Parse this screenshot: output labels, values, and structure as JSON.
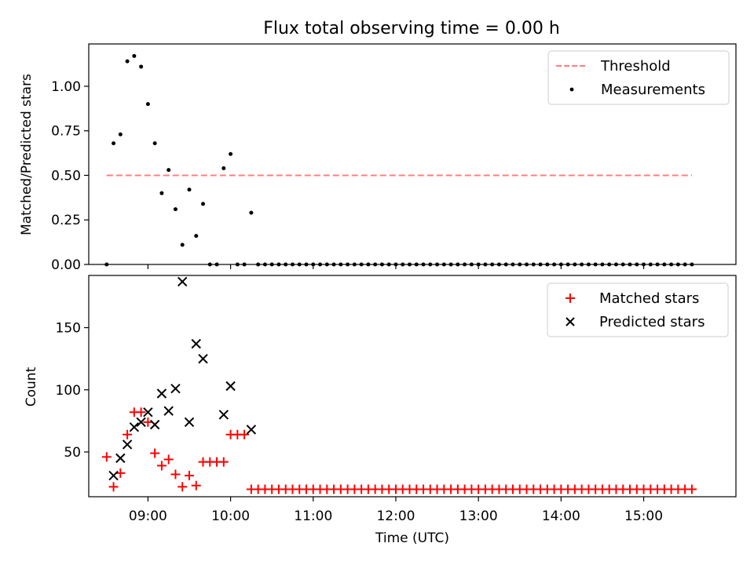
{
  "title": "Flux total observing time = 0.00 h",
  "colors": {
    "threshold": "#ff7f7f",
    "measurements": "#000000",
    "matched": "#ff0000",
    "predicted": "#000000"
  },
  "chart_data": [
    {
      "type": "scatter",
      "ylabel": "Matched/Predicted stars",
      "xlabel": "",
      "ylim": [
        0.0,
        1.2375
      ],
      "yticks": [
        "0.00",
        "0.25",
        "0.50",
        "0.75",
        "1.00"
      ],
      "xlim": [
        "08:17",
        "16:07"
      ],
      "legend_position": "top-right",
      "legend": [
        "Threshold",
        "Measurements"
      ],
      "threshold": {
        "name": "Threshold",
        "y": 0.5,
        "x_start": "08:30",
        "x_end": "15:35"
      },
      "series": [
        {
          "name": "Measurements",
          "points": [
            [
              "08:30",
              0.0
            ],
            [
              "08:35",
              0.68
            ],
            [
              "08:40",
              0.73
            ],
            [
              "08:45",
              1.14
            ],
            [
              "08:50",
              1.17
            ],
            [
              "08:55",
              1.11
            ],
            [
              "09:00",
              0.9
            ],
            [
              "09:05",
              0.68
            ],
            [
              "09:10",
              0.4
            ],
            [
              "09:15",
              0.53
            ],
            [
              "09:20",
              0.31
            ],
            [
              "09:25",
              0.11
            ],
            [
              "09:30",
              0.42
            ],
            [
              "09:35",
              0.16
            ],
            [
              "09:40",
              0.34
            ],
            [
              "09:45",
              0.0
            ],
            [
              "09:50",
              0.0
            ],
            [
              "09:55",
              0.54
            ],
            [
              "10:00",
              0.62
            ],
            [
              "10:05",
              0.0
            ],
            [
              "10:10",
              0.0
            ],
            [
              "10:15",
              0.29
            ],
            [
              "10:20",
              0.0
            ],
            [
              "10:25",
              0.0
            ],
            [
              "10:30",
              0.0
            ],
            [
              "10:35",
              0.0
            ],
            [
              "10:40",
              0.0
            ],
            [
              "10:45",
              0.0
            ],
            [
              "10:50",
              0.0
            ],
            [
              "10:55",
              0.0
            ],
            [
              "11:00",
              0.0
            ],
            [
              "11:05",
              0.0
            ],
            [
              "11:10",
              0.0
            ],
            [
              "11:15",
              0.0
            ],
            [
              "11:20",
              0.0
            ],
            [
              "11:25",
              0.0
            ],
            [
              "11:30",
              0.0
            ],
            [
              "11:35",
              0.0
            ],
            [
              "11:40",
              0.0
            ],
            [
              "11:45",
              0.0
            ],
            [
              "11:50",
              0.0
            ],
            [
              "11:55",
              0.0
            ],
            [
              "12:00",
              0.0
            ],
            [
              "12:05",
              0.0
            ],
            [
              "12:10",
              0.0
            ],
            [
              "12:15",
              0.0
            ],
            [
              "12:20",
              0.0
            ],
            [
              "12:25",
              0.0
            ],
            [
              "12:30",
              0.0
            ],
            [
              "12:35",
              0.0
            ],
            [
              "12:40",
              0.0
            ],
            [
              "12:45",
              0.0
            ],
            [
              "12:50",
              0.0
            ],
            [
              "12:55",
              0.0
            ],
            [
              "13:00",
              0.0
            ],
            [
              "13:05",
              0.0
            ],
            [
              "13:10",
              0.0
            ],
            [
              "13:15",
              0.0
            ],
            [
              "13:20",
              0.0
            ],
            [
              "13:25",
              0.0
            ],
            [
              "13:30",
              0.0
            ],
            [
              "13:35",
              0.0
            ],
            [
              "13:40",
              0.0
            ],
            [
              "13:45",
              0.0
            ],
            [
              "13:50",
              0.0
            ],
            [
              "13:55",
              0.0
            ],
            [
              "14:00",
              0.0
            ],
            [
              "14:05",
              0.0
            ],
            [
              "14:10",
              0.0
            ],
            [
              "14:15",
              0.0
            ],
            [
              "14:20",
              0.0
            ],
            [
              "14:25",
              0.0
            ],
            [
              "14:30",
              0.0
            ],
            [
              "14:35",
              0.0
            ],
            [
              "14:40",
              0.0
            ],
            [
              "14:45",
              0.0
            ],
            [
              "14:50",
              0.0
            ],
            [
              "14:55",
              0.0
            ],
            [
              "15:00",
              0.0
            ],
            [
              "15:05",
              0.0
            ],
            [
              "15:10",
              0.0
            ],
            [
              "15:15",
              0.0
            ],
            [
              "15:20",
              0.0
            ],
            [
              "15:25",
              0.0
            ],
            [
              "15:30",
              0.0
            ],
            [
              "15:35",
              0.0
            ]
          ]
        }
      ]
    },
    {
      "type": "scatter",
      "ylabel": "Count",
      "xlabel": "Time (UTC)",
      "ylim": [
        14,
        192
      ],
      "yticks": [
        "50",
        "100",
        "150"
      ],
      "xlim": [
        "08:17",
        "16:07"
      ],
      "xticks": [
        "09:00",
        "10:00",
        "11:00",
        "12:00",
        "13:00",
        "14:00",
        "15:00"
      ],
      "legend_position": "top-right",
      "legend": [
        "Matched stars",
        "Predicted stars"
      ],
      "series": [
        {
          "name": "Matched stars",
          "marker": "+",
          "points": [
            [
              "08:30",
              46
            ],
            [
              "08:35",
              22
            ],
            [
              "08:40",
              33
            ],
            [
              "08:45",
              64
            ],
            [
              "08:50",
              82
            ],
            [
              "08:55",
              82
            ],
            [
              "09:00",
              74
            ],
            [
              "09:05",
              49
            ],
            [
              "09:10",
              39
            ],
            [
              "09:15",
              44
            ],
            [
              "09:20",
              32
            ],
            [
              "09:25",
              22
            ],
            [
              "09:30",
              31
            ],
            [
              "09:35",
              23
            ],
            [
              "09:40",
              42
            ],
            [
              "09:45",
              42
            ],
            [
              "09:50",
              42
            ],
            [
              "09:55",
              42
            ],
            [
              "10:00",
              64
            ],
            [
              "10:05",
              64
            ],
            [
              "10:10",
              64
            ],
            [
              "10:15",
              20
            ],
            [
              "10:20",
              20
            ],
            [
              "10:25",
              20
            ],
            [
              "10:30",
              20
            ],
            [
              "10:35",
              20
            ],
            [
              "10:40",
              20
            ],
            [
              "10:45",
              20
            ],
            [
              "10:50",
              20
            ],
            [
              "10:55",
              20
            ],
            [
              "11:00",
              20
            ],
            [
              "11:05",
              20
            ],
            [
              "11:10",
              20
            ],
            [
              "11:15",
              20
            ],
            [
              "11:20",
              20
            ],
            [
              "11:25",
              20
            ],
            [
              "11:30",
              20
            ],
            [
              "11:35",
              20
            ],
            [
              "11:40",
              20
            ],
            [
              "11:45",
              20
            ],
            [
              "11:50",
              20
            ],
            [
              "11:55",
              20
            ],
            [
              "12:00",
              20
            ],
            [
              "12:05",
              20
            ],
            [
              "12:10",
              20
            ],
            [
              "12:15",
              20
            ],
            [
              "12:20",
              20
            ],
            [
              "12:25",
              20
            ],
            [
              "12:30",
              20
            ],
            [
              "12:35",
              20
            ],
            [
              "12:40",
              20
            ],
            [
              "12:45",
              20
            ],
            [
              "12:50",
              20
            ],
            [
              "12:55",
              20
            ],
            [
              "13:00",
              20
            ],
            [
              "13:05",
              20
            ],
            [
              "13:10",
              20
            ],
            [
              "13:15",
              20
            ],
            [
              "13:20",
              20
            ],
            [
              "13:25",
              20
            ],
            [
              "13:30",
              20
            ],
            [
              "13:35",
              20
            ],
            [
              "13:40",
              20
            ],
            [
              "13:45",
              20
            ],
            [
              "13:50",
              20
            ],
            [
              "13:55",
              20
            ],
            [
              "14:00",
              20
            ],
            [
              "14:05",
              20
            ],
            [
              "14:10",
              20
            ],
            [
              "14:15",
              20
            ],
            [
              "14:20",
              20
            ],
            [
              "14:25",
              20
            ],
            [
              "14:30",
              20
            ],
            [
              "14:35",
              20
            ],
            [
              "14:40",
              20
            ],
            [
              "14:45",
              20
            ],
            [
              "14:50",
              20
            ],
            [
              "14:55",
              20
            ],
            [
              "15:00",
              20
            ],
            [
              "15:05",
              20
            ],
            [
              "15:10",
              20
            ],
            [
              "15:15",
              20
            ],
            [
              "15:20",
              20
            ],
            [
              "15:25",
              20
            ],
            [
              "15:30",
              20
            ],
            [
              "15:35",
              20
            ]
          ]
        },
        {
          "name": "Predicted stars",
          "marker": "x",
          "points": [
            [
              "08:35",
              31
            ],
            [
              "08:40",
              45
            ],
            [
              "08:45",
              56
            ],
            [
              "08:50",
              70
            ],
            [
              "08:55",
              74
            ],
            [
              "09:00",
              82
            ],
            [
              "09:05",
              72
            ],
            [
              "09:10",
              97
            ],
            [
              "09:15",
              83
            ],
            [
              "09:20",
              101
            ],
            [
              "09:25",
              187
            ],
            [
              "09:30",
              74
            ],
            [
              "09:35",
              137
            ],
            [
              "09:40",
              125
            ],
            [
              "09:55",
              80
            ],
            [
              "10:00",
              103
            ],
            [
              "10:15",
              68
            ]
          ]
        }
      ]
    }
  ]
}
